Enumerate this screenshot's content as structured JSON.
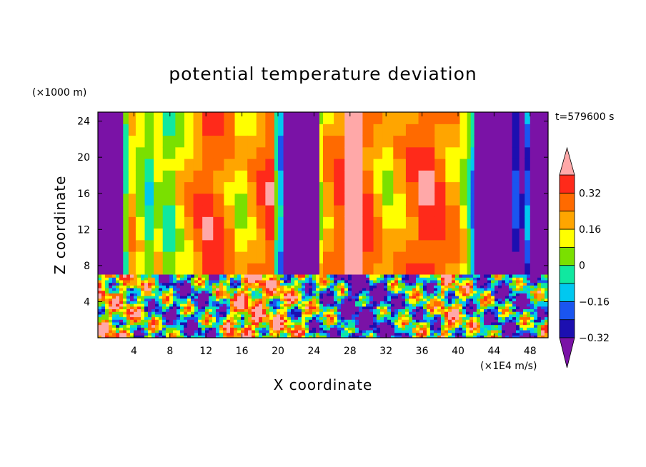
{
  "chart_data": {
    "type": "heatmap",
    "title": "potential temperature deviation",
    "xlabel": "X coordinate",
    "ylabel": "Z coordinate",
    "x_units": "(×1E4 m/s)",
    "y_units": "(×1000 m)",
    "time_label": "t=579600 s",
    "xlim": [
      0,
      50
    ],
    "ylim": [
      0,
      25
    ],
    "x_ticks": [
      4,
      8,
      12,
      16,
      20,
      24,
      28,
      32,
      36,
      40,
      44,
      48
    ],
    "y_ticks": [
      4,
      8,
      12,
      16,
      20,
      24
    ],
    "interface_height": 7,
    "colorbar": {
      "levels": [
        -0.4,
        -0.32,
        -0.24,
        -0.16,
        -0.08,
        0,
        0.08,
        0.16,
        0.24,
        0.32,
        0.4
      ],
      "labels": [
        "0.32",
        "0.16",
        "0",
        "−0.16",
        "−0.32"
      ],
      "colors": [
        "#7a12a6",
        "#1c0fb0",
        "#1a55f0",
        "#00c8f0",
        "#10e8a0",
        "#7ae000",
        "#ffff00",
        "#ffa500",
        "#ff6a00",
        "#ff2a1a",
        "#ffa8a8"
      ]
    },
    "upper_layer_columns": [
      {
        "x_start": 0,
        "x_end": 2.8,
        "value": -0.4
      },
      {
        "x_start": 2.8,
        "x_end": 3.4,
        "value": 0.0
      },
      {
        "x_start": 3.4,
        "x_end": 4.2,
        "value": 0.18
      },
      {
        "x_start": 4.2,
        "x_end": 5.2,
        "value": 0.08
      },
      {
        "x_start": 5.2,
        "x_end": 6.2,
        "value": -0.02
      },
      {
        "x_start": 6.2,
        "x_end": 7.2,
        "value": 0.1
      },
      {
        "x_start": 7.2,
        "x_end": 8.6,
        "value": 0.02
      },
      {
        "x_start": 8.6,
        "x_end": 9.6,
        "value": 0.12
      },
      {
        "x_start": 9.6,
        "x_end": 10.6,
        "value": 0.2
      },
      {
        "x_start": 10.6,
        "x_end": 11.6,
        "value": 0.26
      },
      {
        "x_start": 11.6,
        "x_end": 12.8,
        "value": 0.34
      },
      {
        "x_start": 12.8,
        "x_end": 14.0,
        "value": 0.3
      },
      {
        "x_start": 14.0,
        "x_end": 15.2,
        "value": 0.22
      },
      {
        "x_start": 15.2,
        "x_end": 16.6,
        "value": 0.12
      },
      {
        "x_start": 16.6,
        "x_end": 17.6,
        "value": 0.2
      },
      {
        "x_start": 17.6,
        "x_end": 18.6,
        "value": 0.28
      },
      {
        "x_start": 18.6,
        "x_end": 19.6,
        "value": 0.34
      },
      {
        "x_start": 19.6,
        "x_end": 20.0,
        "value": 0.0
      },
      {
        "x_start": 20.0,
        "x_end": 20.6,
        "value": -0.14
      },
      {
        "x_start": 20.6,
        "x_end": 24.6,
        "value": -0.4
      },
      {
        "x_start": 24.6,
        "x_end": 25.0,
        "value": 0.1
      },
      {
        "x_start": 25.0,
        "x_end": 26.2,
        "value": 0.22
      },
      {
        "x_start": 26.2,
        "x_end": 27.4,
        "value": 0.3
      },
      {
        "x_start": 27.4,
        "x_end": 29.4,
        "value": 0.4
      },
      {
        "x_start": 29.4,
        "x_end": 30.6,
        "value": 0.3
      },
      {
        "x_start": 30.6,
        "x_end": 31.6,
        "value": 0.2
      },
      {
        "x_start": 31.6,
        "x_end": 32.8,
        "value": 0.12
      },
      {
        "x_start": 32.8,
        "x_end": 34.2,
        "value": 0.2
      },
      {
        "x_start": 34.2,
        "x_end": 35.6,
        "value": 0.28
      },
      {
        "x_start": 35.6,
        "x_end": 37.4,
        "value": 0.36
      },
      {
        "x_start": 37.4,
        "x_end": 38.6,
        "value": 0.3
      },
      {
        "x_start": 38.6,
        "x_end": 40.2,
        "value": 0.22
      },
      {
        "x_start": 40.2,
        "x_end": 41.0,
        "value": 0.1
      },
      {
        "x_start": 41.0,
        "x_end": 41.4,
        "value": 0.0
      },
      {
        "x_start": 41.4,
        "x_end": 41.8,
        "value": -0.14
      },
      {
        "x_start": 41.8,
        "x_end": 46.0,
        "value": -0.4
      },
      {
        "x_start": 46.0,
        "x_end": 46.8,
        "value": -0.26
      },
      {
        "x_start": 46.8,
        "x_end": 47.4,
        "value": -0.36
      },
      {
        "x_start": 47.4,
        "x_end": 48.0,
        "value": -0.2
      },
      {
        "x_start": 48.0,
        "x_end": 50,
        "value": -0.4
      }
    ],
    "lower_layer": "turbulent mixed field, values from -0.4 to 0.4"
  }
}
